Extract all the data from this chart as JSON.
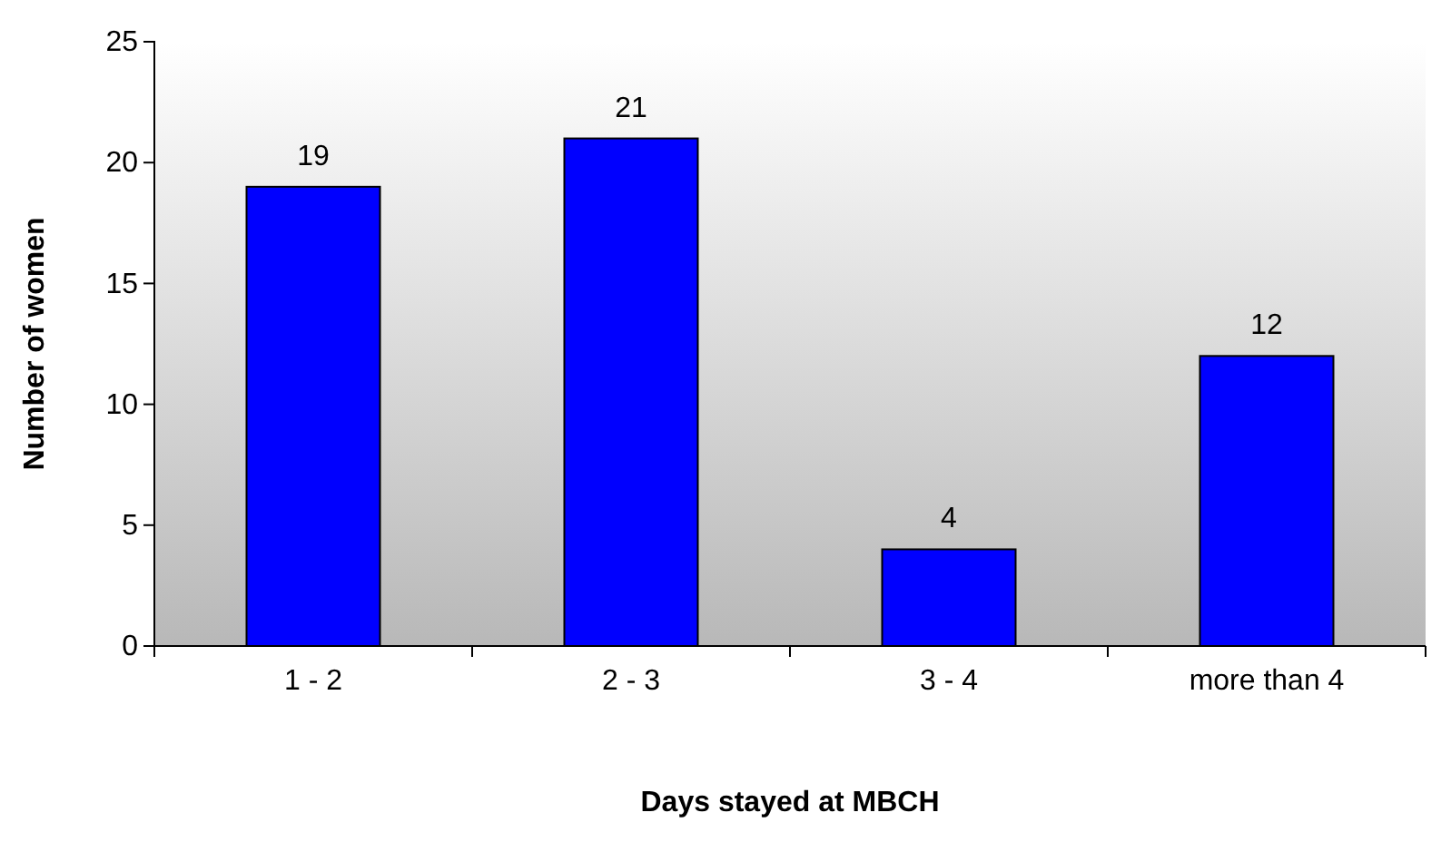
{
  "chart_data": {
    "type": "bar",
    "xlabel": "Days stayed at MBCH",
    "ylabel": "Number of women",
    "categories": [
      "1 - 2",
      "2 - 3",
      "3 - 4",
      "more than 4"
    ],
    "values": [
      19,
      21,
      4,
      12
    ],
    "color": "#0000ff",
    "ylim": [
      0,
      25
    ],
    "yticks": [
      0,
      5,
      10,
      15,
      20,
      25
    ],
    "data_labels": true
  }
}
